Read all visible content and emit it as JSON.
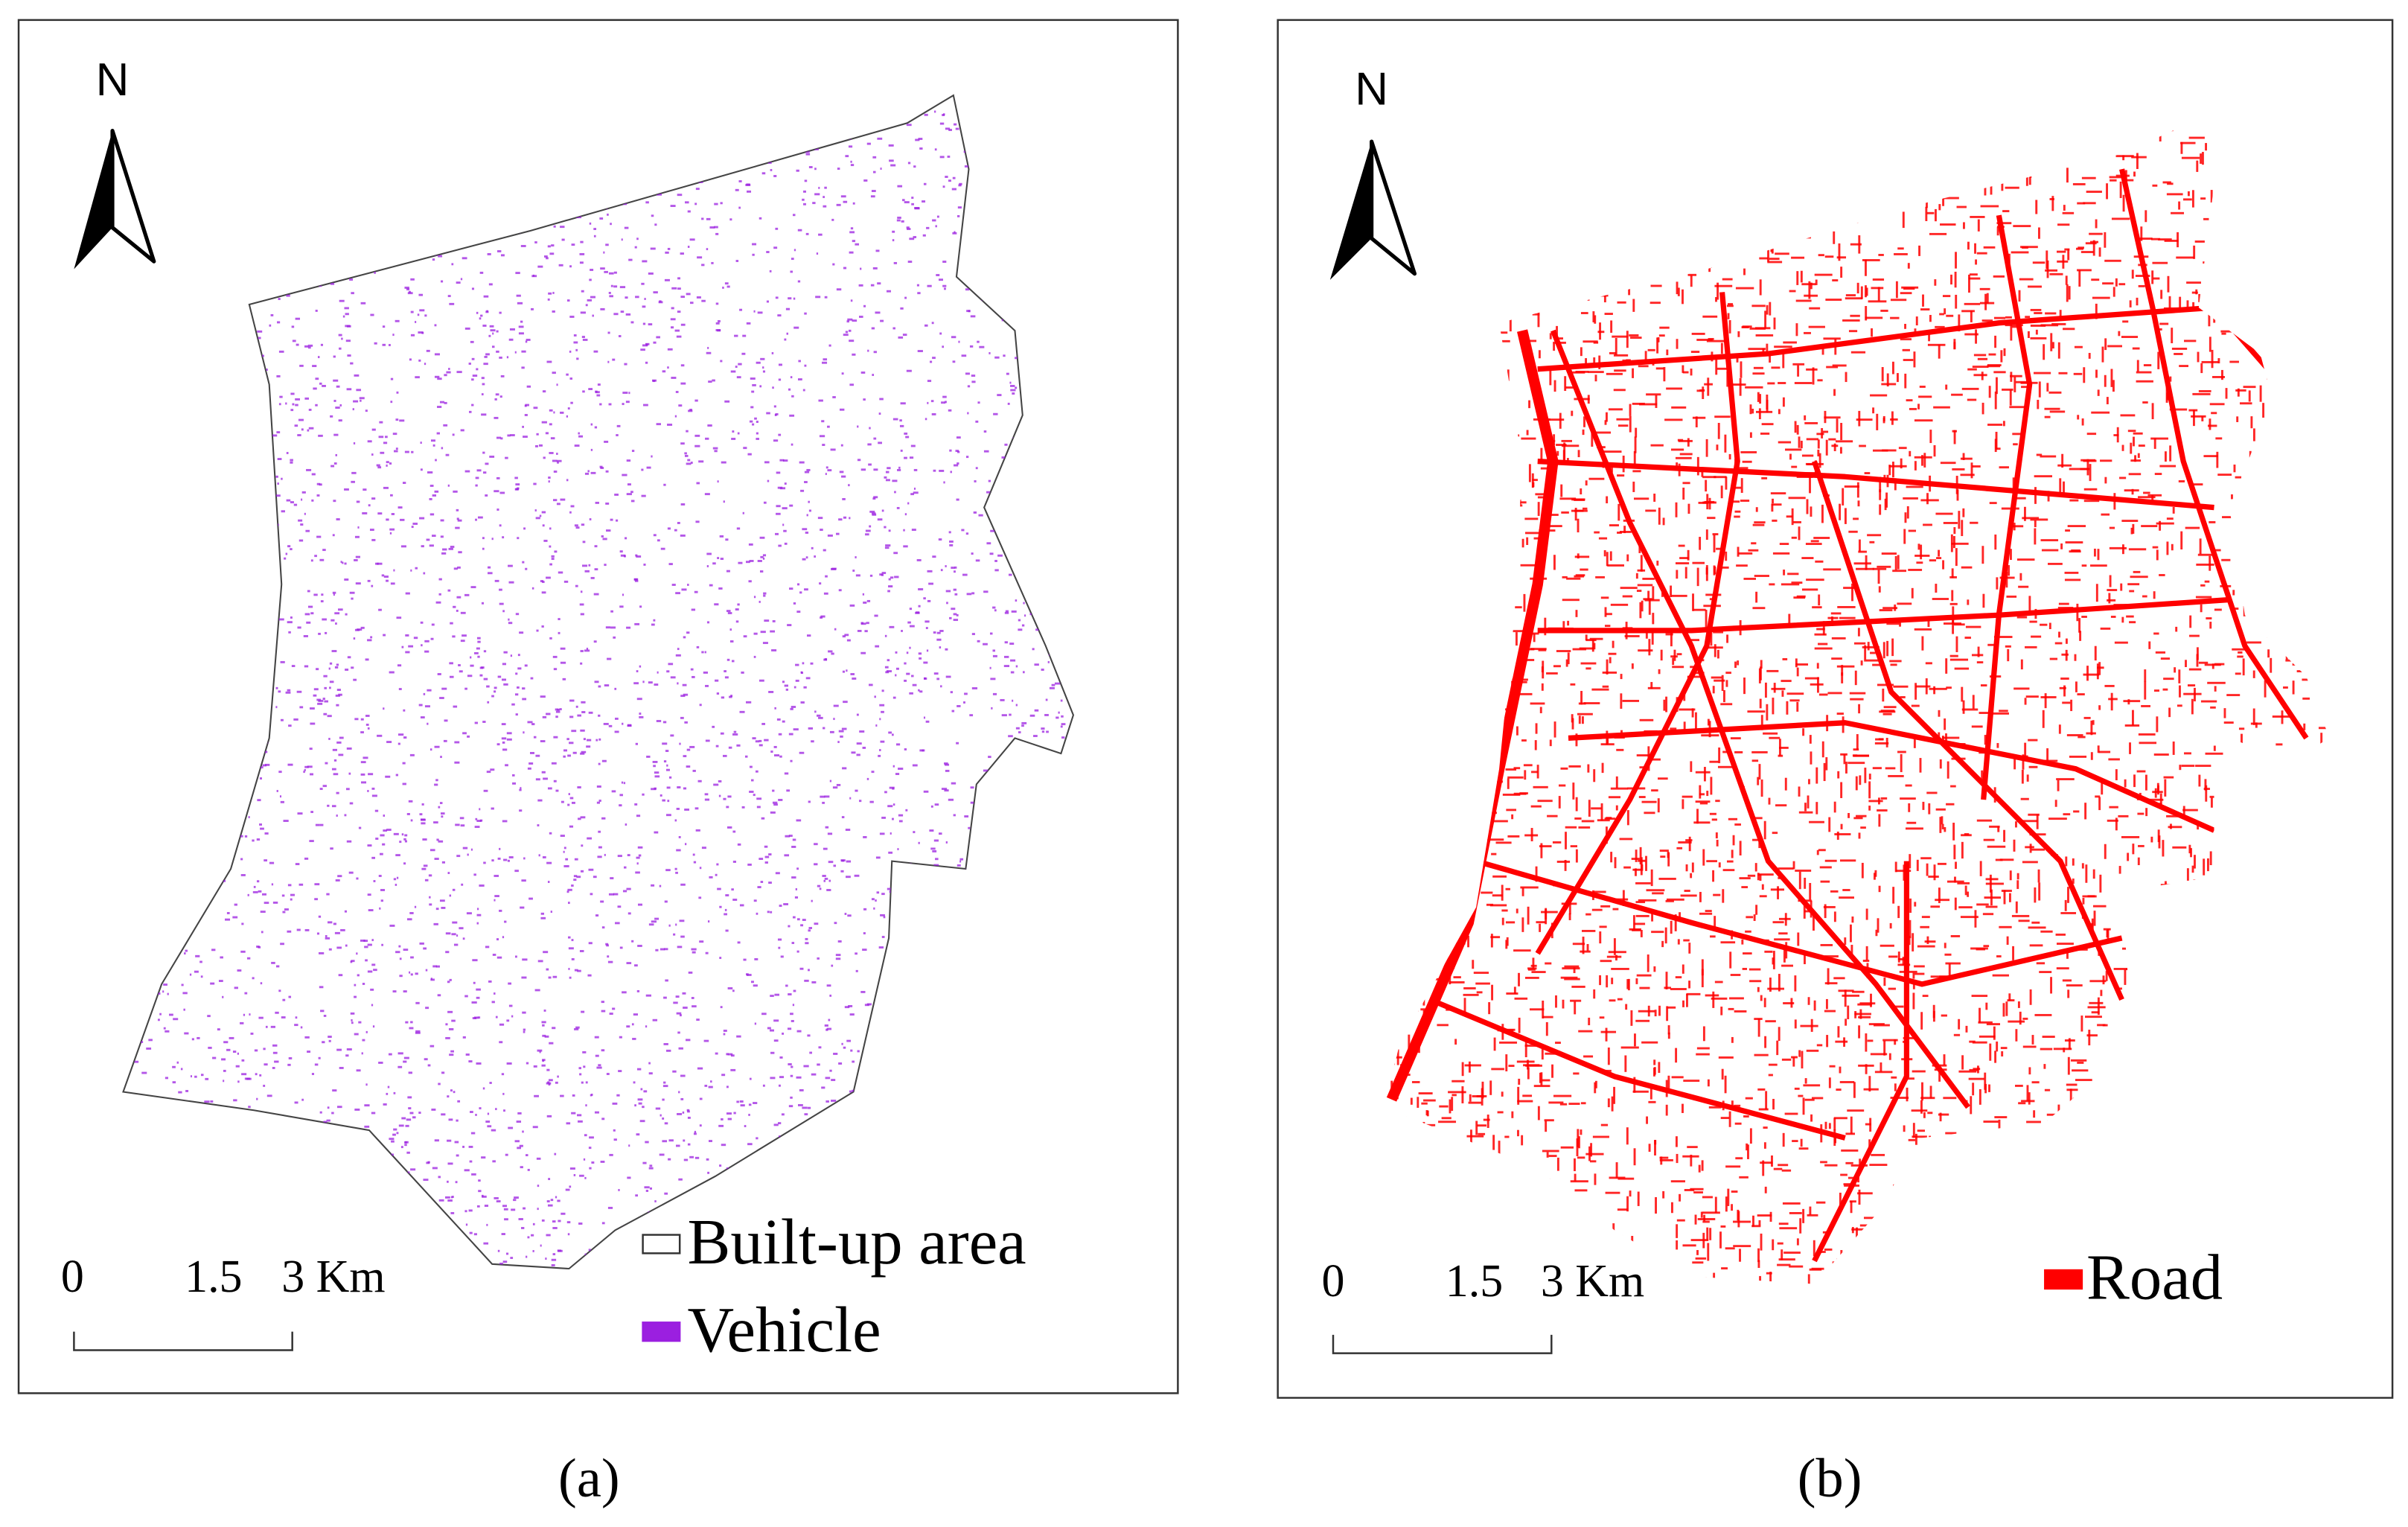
{
  "panels": [
    {
      "north": "N",
      "scale": {
        "labels": [
          "0",
          "1.5",
          "3 Km"
        ]
      },
      "legend": [
        {
          "label": "Built-up area",
          "color": "#ffffff"
        },
        {
          "label": "Vehicle",
          "color": "#9b1fe0"
        }
      ],
      "caption": "(a)"
    },
    {
      "north": "N",
      "scale": {
        "labels": [
          "0",
          "1.5",
          "3 Km"
        ]
      },
      "legend": [
        {
          "label": "Road",
          "color": "#ff0000"
        }
      ],
      "caption": "(b)"
    }
  ]
}
